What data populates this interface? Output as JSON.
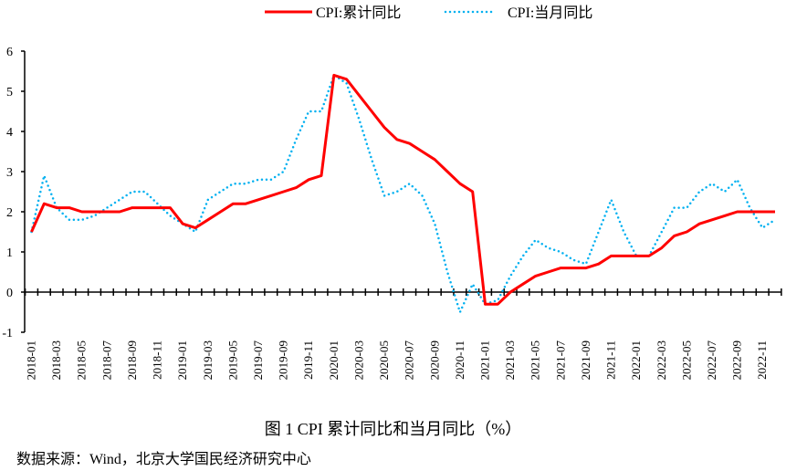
{
  "chart_data": {
    "type": "line",
    "title": "图 1 CPI 累计同比和当月同比（%）",
    "source": "数据来源：Wind，北京大学国民经济研究中心",
    "xlabel": "",
    "ylabel": "",
    "ylim": [
      -1,
      6
    ],
    "yticks": [
      "-1",
      "0",
      "1",
      "2",
      "3",
      "4",
      "5",
      "6"
    ],
    "legend_position": "top",
    "grid": false,
    "categories": [
      "2018-01",
      "2018-02",
      "2018-03",
      "2018-04",
      "2018-05",
      "2018-06",
      "2018-07",
      "2018-08",
      "2018-09",
      "2018-10",
      "2018-11",
      "2018-12",
      "2019-01",
      "2019-02",
      "2019-03",
      "2019-04",
      "2019-05",
      "2019-06",
      "2019-07",
      "2019-08",
      "2019-09",
      "2019-10",
      "2019-11",
      "2019-12",
      "2020-01",
      "2020-02",
      "2020-03",
      "2020-04",
      "2020-05",
      "2020-06",
      "2020-07",
      "2020-08",
      "2020-09",
      "2020-10",
      "2020-11",
      "2020-12",
      "2021-01",
      "2021-02",
      "2021-03",
      "2021-04",
      "2021-05",
      "2021-06",
      "2021-07",
      "2021-08",
      "2021-09",
      "2021-10",
      "2021-11",
      "2021-12",
      "2022-01",
      "2022-02",
      "2022-03",
      "2022-04",
      "2022-05",
      "2022-06",
      "2022-07",
      "2022-08",
      "2022-09",
      "2022-10",
      "2022-11",
      "2022-12"
    ],
    "tick_labels": [
      "2018-01",
      "2018-03",
      "2018-05",
      "2018-07",
      "2018-09",
      "2018-11",
      "2019-01",
      "2019-03",
      "2019-05",
      "2019-07",
      "2019-09",
      "2019-11",
      "2020-01",
      "2020-03",
      "2020-05",
      "2020-07",
      "2020-09",
      "2020-11",
      "2021-01",
      "2021-03",
      "2021-05",
      "2021-07",
      "2021-09",
      "2021-11",
      "2022-01",
      "2022-03",
      "2022-05",
      "2022-07",
      "2022-09",
      "2022-11"
    ],
    "series": [
      {
        "name": "CPI:累计同比",
        "color": "#ff0000",
        "style": "solid",
        "values": [
          1.5,
          2.2,
          2.1,
          2.1,
          2.0,
          2.0,
          2.0,
          2.0,
          2.1,
          2.1,
          2.1,
          2.1,
          1.7,
          1.6,
          1.8,
          2.0,
          2.2,
          2.2,
          2.3,
          2.4,
          2.5,
          2.6,
          2.8,
          2.9,
          5.4,
          5.3,
          4.9,
          4.5,
          4.1,
          3.8,
          3.7,
          3.5,
          3.3,
          3.0,
          2.7,
          2.5,
          -0.3,
          -0.3,
          0.0,
          0.2,
          0.4,
          0.5,
          0.6,
          0.6,
          0.6,
          0.7,
          0.9,
          0.9,
          0.9,
          0.9,
          1.1,
          1.4,
          1.5,
          1.7,
          1.8,
          1.9,
          2.0,
          2.0,
          2.0,
          2.0
        ]
      },
      {
        "name": "CPI:当月同比",
        "color": "#00b0f0",
        "style": "dotted",
        "values": [
          1.5,
          2.9,
          2.1,
          1.8,
          1.8,
          1.9,
          2.1,
          2.3,
          2.5,
          2.5,
          2.2,
          1.9,
          1.7,
          1.5,
          2.3,
          2.5,
          2.7,
          2.7,
          2.8,
          2.8,
          3.0,
          3.8,
          4.5,
          4.5,
          5.4,
          5.2,
          4.3,
          3.3,
          2.4,
          2.5,
          2.7,
          2.4,
          1.7,
          0.5,
          -0.5,
          0.2,
          -0.3,
          -0.2,
          0.4,
          0.9,
          1.3,
          1.1,
          1.0,
          0.8,
          0.7,
          1.5,
          2.3,
          1.5,
          0.9,
          0.9,
          1.5,
          2.1,
          2.1,
          2.5,
          2.7,
          2.5,
          2.8,
          2.1,
          1.6,
          1.8
        ]
      }
    ]
  }
}
